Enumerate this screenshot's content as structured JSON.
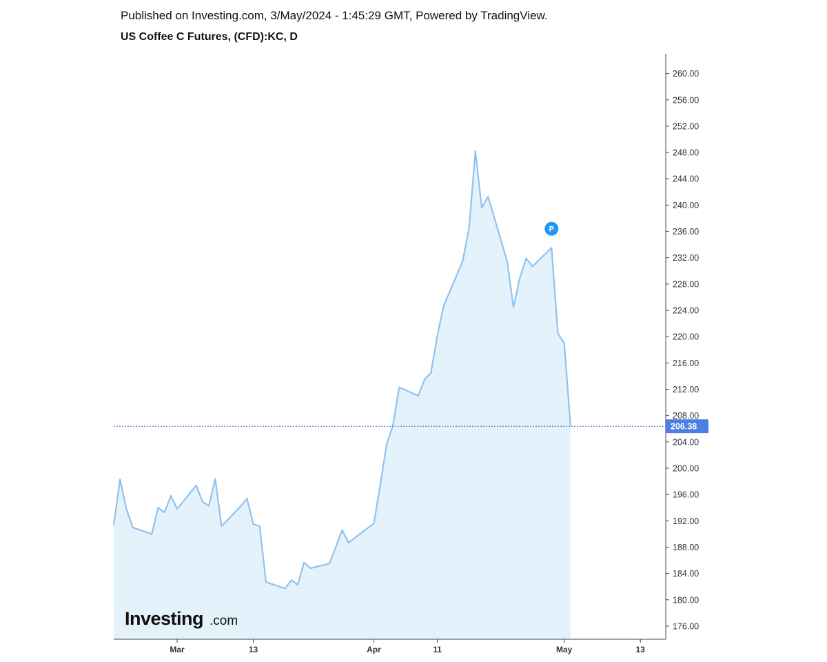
{
  "header": {
    "published": "Published on Investing.com, 3/May/2024 - 1:45:29 GMT, Powered by TradingView.",
    "title": "US Coffee C Futures, (CFD):KC, D"
  },
  "logo": {
    "main": "Investing",
    "suffix": ".com"
  },
  "marker": {
    "label": "P",
    "color": "#2196f3",
    "date_index": 56,
    "value": 236.4
  },
  "chart_data": {
    "type": "area",
    "title": "US Coffee C Futures, (CFD):KC, D",
    "xlabel": "",
    "ylabel": "",
    "ylim": [
      174,
      263
    ],
    "y_ticks": [
      176,
      180,
      184,
      188,
      192,
      196,
      200,
      204,
      208,
      212,
      216,
      220,
      224,
      228,
      232,
      236,
      240,
      244,
      248,
      252,
      256,
      260
    ],
    "x_ticks": [
      {
        "label": "Mar",
        "date": "2024-03-01"
      },
      {
        "label": "13",
        "date": "2024-03-13"
      },
      {
        "label": "Apr",
        "date": "2024-04-01"
      },
      {
        "label": "11",
        "date": "2024-04-11"
      },
      {
        "label": "May",
        "date": "2024-05-01"
      },
      {
        "label": "13",
        "date": "2024-05-13"
      }
    ],
    "x_range": [
      "2024-02-20",
      "2024-05-17"
    ],
    "last_value": 206.38,
    "last_value_label": "206.38",
    "series": [
      {
        "color": "#90c2ee",
        "fill": "#e3f2fb",
        "x": [
          "2024-02-20",
          "2024-02-21",
          "2024-02-22",
          "2024-02-23",
          "2024-02-26",
          "2024-02-27",
          "2024-02-28",
          "2024-02-29",
          "2024-03-01",
          "2024-03-04",
          "2024-03-05",
          "2024-03-06",
          "2024-03-07",
          "2024-03-08",
          "2024-03-11",
          "2024-03-12",
          "2024-03-13",
          "2024-03-14",
          "2024-03-15",
          "2024-03-18",
          "2024-03-19",
          "2024-03-20",
          "2024-03-21",
          "2024-03-22",
          "2024-03-25",
          "2024-03-26",
          "2024-03-27",
          "2024-03-28",
          "2024-04-01",
          "2024-04-02",
          "2024-04-03",
          "2024-04-04",
          "2024-04-05",
          "2024-04-08",
          "2024-04-09",
          "2024-04-10",
          "2024-04-11",
          "2024-04-12",
          "2024-04-15",
          "2024-04-16",
          "2024-04-17",
          "2024-04-18",
          "2024-04-19",
          "2024-04-22",
          "2024-04-23",
          "2024-04-24",
          "2024-04-25",
          "2024-04-26",
          "2024-04-29",
          "2024-04-30",
          "2024-05-01",
          "2024-05-02"
        ],
        "values": [
          191.3,
          198.3,
          193.8,
          191.0,
          190.0,
          194.0,
          193.3,
          195.8,
          193.8,
          197.4,
          194.9,
          194.3,
          198.4,
          191.2,
          194.2,
          195.4,
          191.5,
          191.2,
          182.7,
          181.7,
          183.0,
          182.3,
          185.7,
          184.8,
          185.5,
          188.0,
          190.6,
          188.7,
          191.6,
          197.4,
          203.6,
          206.5,
          212.3,
          211.0,
          213.5,
          214.5,
          220.2,
          224.7,
          231.5,
          236.5,
          248.2,
          239.6,
          241.3,
          231.5,
          224.5,
          228.9,
          231.9,
          230.7,
          233.5,
          220.5,
          219.0,
          206.38
        ]
      }
    ]
  }
}
